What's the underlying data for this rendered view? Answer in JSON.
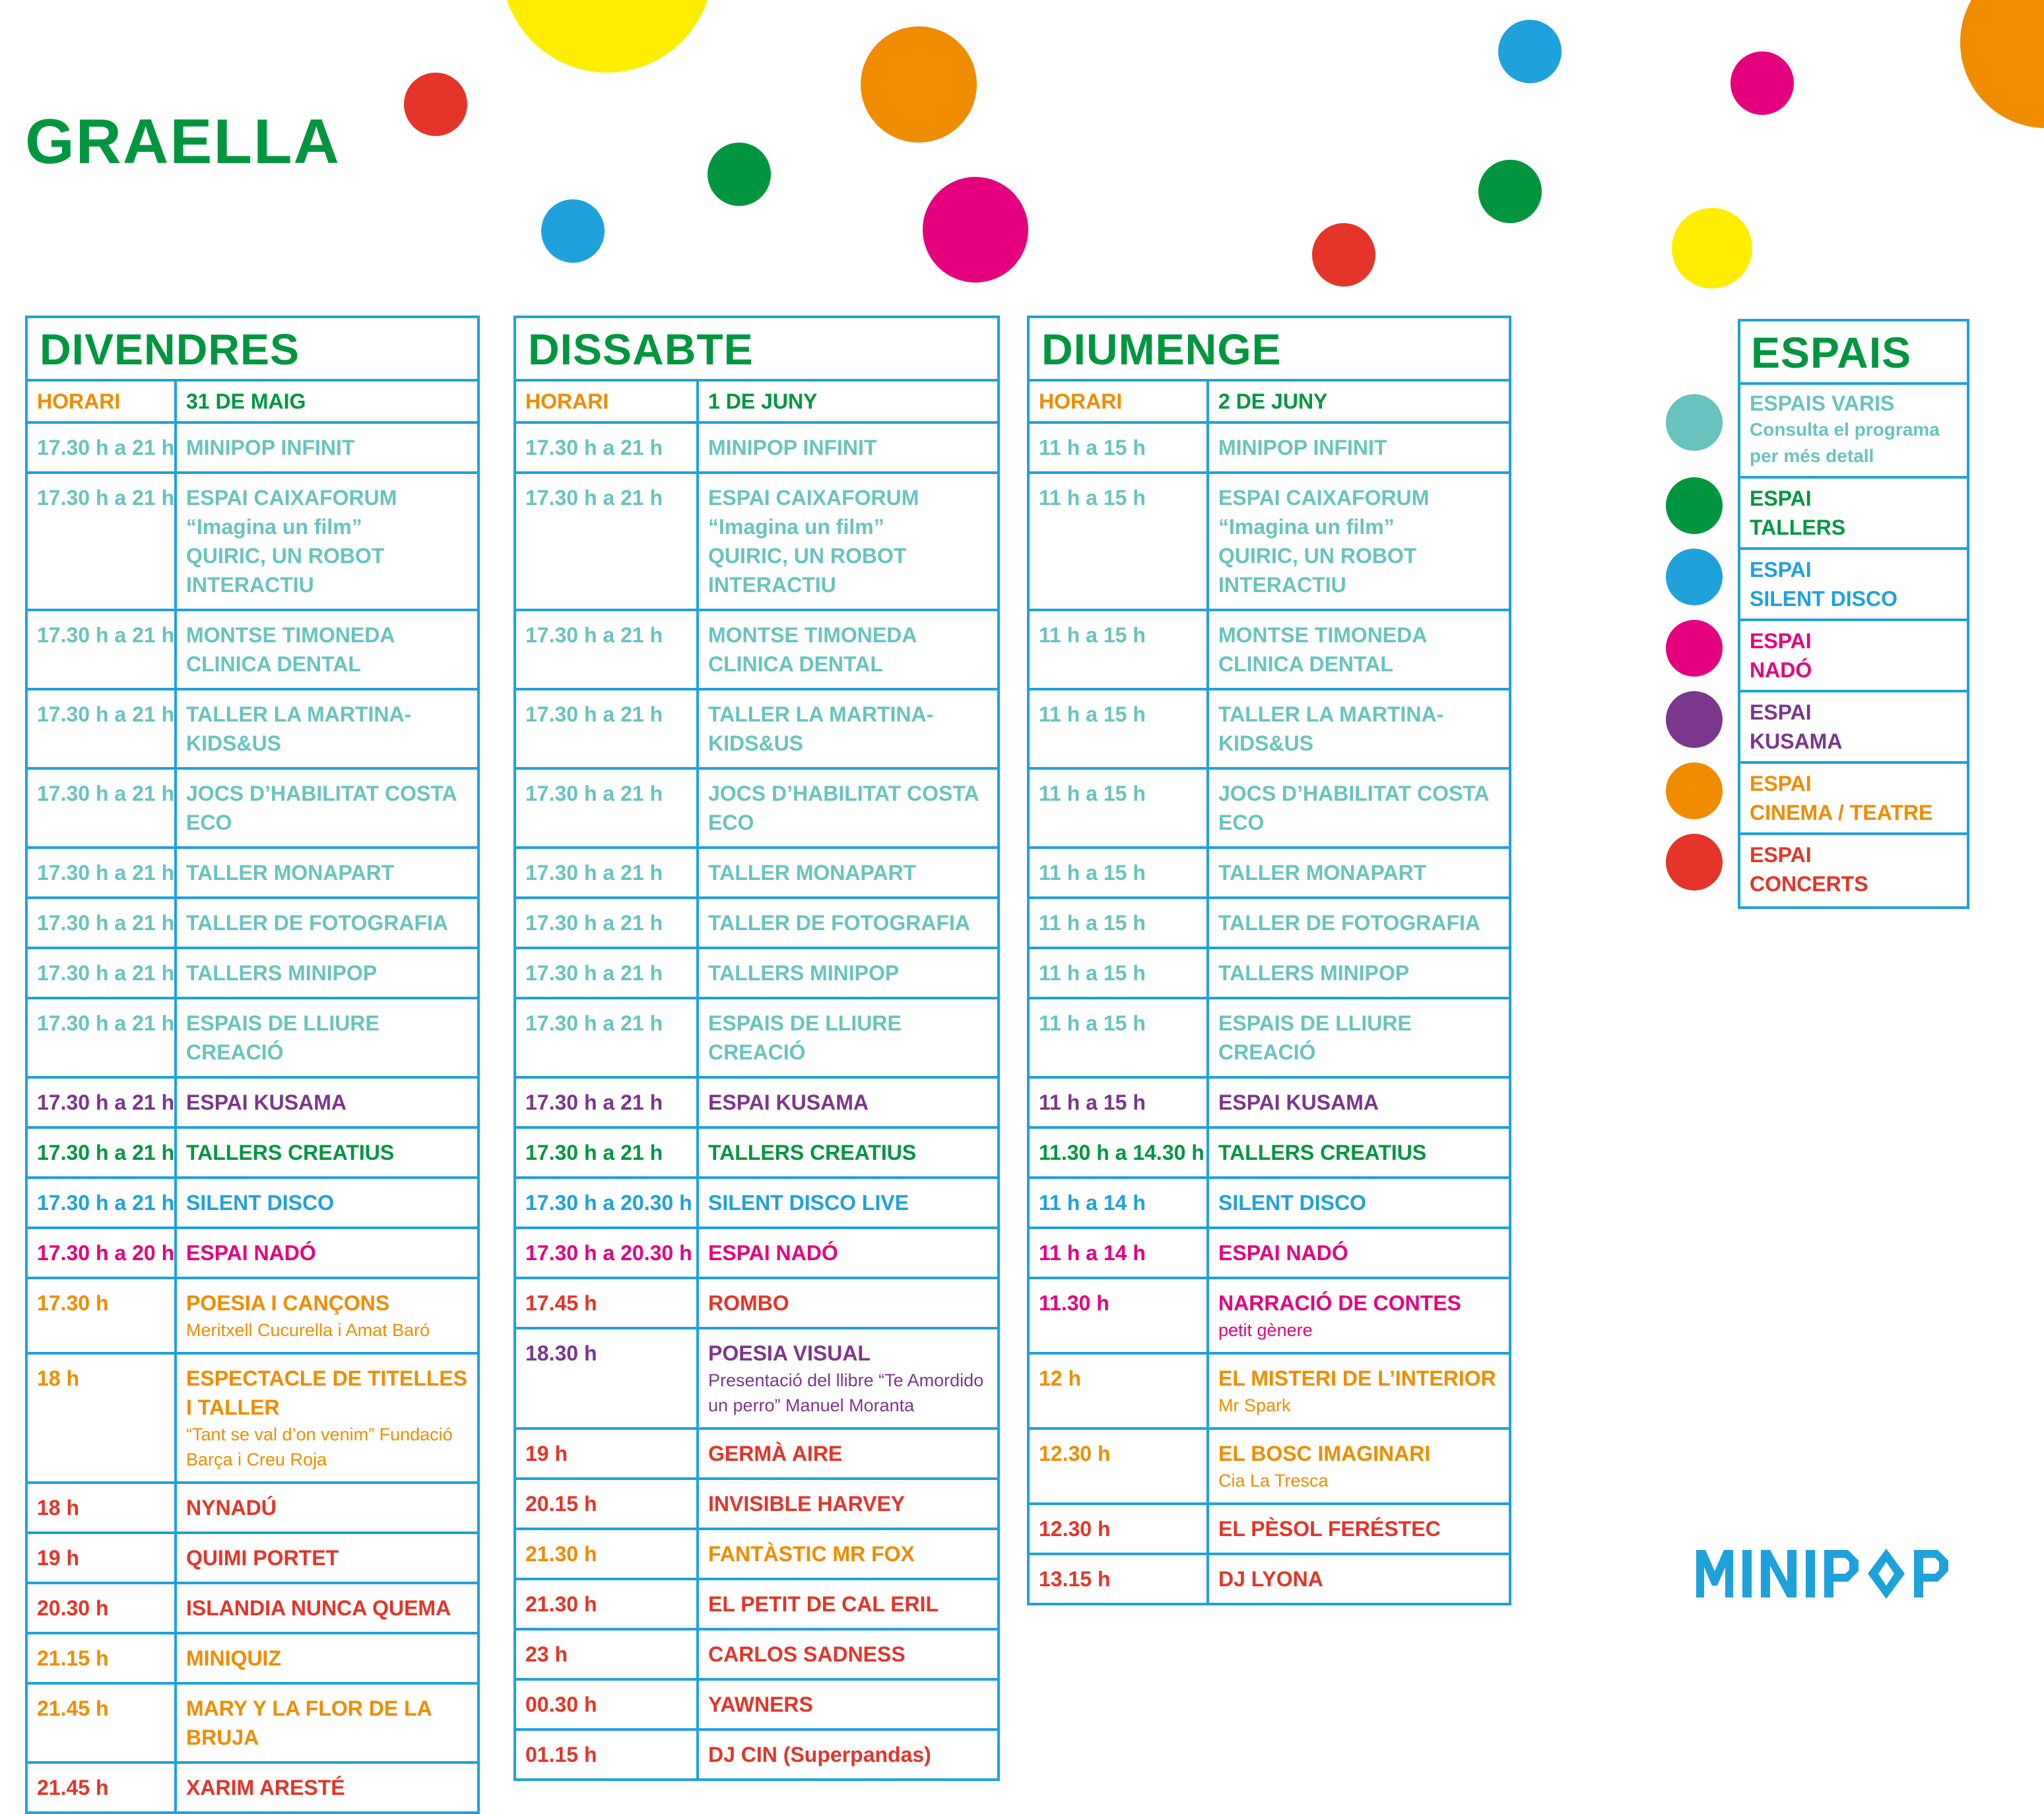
{
  "title": "GRAELLA",
  "colors": {
    "border": "#1fa1dc",
    "green": "#009640",
    "teal": "#69c3be",
    "blue": "#1fa1dc",
    "pink": "#e5007e",
    "purple": "#7b378b",
    "orange": "#f08c00",
    "red": "#e53429",
    "yellow": "#ffed00"
  },
  "days": [
    {
      "name": "DIVENDRES",
      "horari_label": "HORARI",
      "date": "31 DE MAIG",
      "rows": [
        {
          "time": "17.30 h a 21 h",
          "lines": [
            "MINIPOP INFINIT"
          ],
          "color": "teal"
        },
        {
          "time": "17.30 h a 21 h",
          "lines": [
            "ESPAI CAIXAFORUM",
            "“Imagina un film”",
            "QUIRIC, UN ROBOT INTERACTIU"
          ],
          "color": "teal"
        },
        {
          "time": "17.30 h a 21 h",
          "lines": [
            "MONTSE TIMONEDA",
            "CLINICA DENTAL"
          ],
          "color": "teal"
        },
        {
          "time": "17.30 h a 21 h",
          "lines": [
            "TALLER LA MARTINA- KIDS&US"
          ],
          "color": "teal"
        },
        {
          "time": "17.30 h a 21 h",
          "lines": [
            "JOCS D’HABILITAT COSTA ECO"
          ],
          "color": "teal"
        },
        {
          "time": "17.30 h a 21 h",
          "lines": [
            "TALLER MONAPART"
          ],
          "color": "teal"
        },
        {
          "time": "17.30 h a 21 h",
          "lines": [
            "TALLER DE FOTOGRAFIA"
          ],
          "color": "teal"
        },
        {
          "time": "17.30 h a 21 h",
          "lines": [
            "TALLERS MINIPOP"
          ],
          "color": "teal"
        },
        {
          "time": "17.30 h a 21 h",
          "lines": [
            "ESPAIS DE LLIURE CREACIÓ"
          ],
          "color": "teal"
        },
        {
          "time": "17.30 h a 21 h",
          "lines": [
            "ESPAI KUSAMA"
          ],
          "color": "purple"
        },
        {
          "time": "17.30 h a 21 h",
          "lines": [
            "TALLERS CREATIUS"
          ],
          "color": "green"
        },
        {
          "time": "17.30 h a 21 h",
          "lines": [
            "SILENT DISCO"
          ],
          "color": "blue"
        },
        {
          "time": "17.30 h a 20 h",
          "lines": [
            "ESPAI NADÓ"
          ],
          "color": "pink"
        },
        {
          "time": "17.30 h",
          "lines": [
            "POESIA I CANÇONS"
          ],
          "sub": [
            "Meritxell Cucurella i Amat Baró"
          ],
          "color": "orange"
        },
        {
          "time": "18 h",
          "lines": [
            "ESPECTACLE DE TITELLES I TALLER"
          ],
          "sub": [
            "“Tant se val d’on venim” Fundació",
            "Barça i Creu Roja"
          ],
          "color": "orange"
        },
        {
          "time": "18 h",
          "lines": [
            "NYNADÚ"
          ],
          "color": "red"
        },
        {
          "time": "19 h",
          "lines": [
            "QUIMI PORTET"
          ],
          "color": "red"
        },
        {
          "time": "20.30 h",
          "lines": [
            "ISLANDIA NUNCA QUEMA"
          ],
          "color": "red"
        },
        {
          "time": "21.15 h",
          "lines": [
            "MINIQUIZ"
          ],
          "color": "orange"
        },
        {
          "time": "21.45 h",
          "lines": [
            "MARY Y LA FLOR DE LA",
            "BRUJA"
          ],
          "color": "orange"
        },
        {
          "time": "21.45 h",
          "lines": [
            "XARIM ARESTÉ"
          ],
          "color": "red"
        }
      ]
    },
    {
      "name": "DISSABTE",
      "horari_label": "HORARI",
      "date": "1 DE JUNY",
      "rows": [
        {
          "time": "17.30 h a 21 h",
          "lines": [
            "MINIPOP INFINIT"
          ],
          "color": "teal"
        },
        {
          "time": "17.30 h a 21 h",
          "lines": [
            "ESPAI CAIXAFORUM",
            "“Imagina un film”",
            "QUIRIC, UN ROBOT INTERACTIU"
          ],
          "color": "teal"
        },
        {
          "time": "17.30 h a 21 h",
          "lines": [
            "MONTSE TIMONEDA",
            "CLINICA DENTAL"
          ],
          "color": "teal"
        },
        {
          "time": "17.30 h a 21 h",
          "lines": [
            "TALLER LA MARTINA- KIDS&US"
          ],
          "color": "teal"
        },
        {
          "time": "17.30 h a 21 h",
          "lines": [
            "JOCS D’HABILITAT COSTA ECO"
          ],
          "color": "teal"
        },
        {
          "time": "17.30 h a 21 h",
          "lines": [
            "TALLER MONAPART"
          ],
          "color": "teal"
        },
        {
          "time": "17.30 h a 21 h",
          "lines": [
            "TALLER DE FOTOGRAFIA"
          ],
          "color": "teal"
        },
        {
          "time": "17.30 h a 21 h",
          "lines": [
            "TALLERS MINIPOP"
          ],
          "color": "teal"
        },
        {
          "time": "17.30 h a 21 h",
          "lines": [
            "ESPAIS DE LLIURE CREACIÓ"
          ],
          "color": "teal"
        },
        {
          "time": "17.30 h a 21 h",
          "lines": [
            "ESPAI KUSAMA"
          ],
          "color": "purple"
        },
        {
          "time": "17.30 h a 21 h",
          "lines": [
            "TALLERS CREATIUS"
          ],
          "color": "green"
        },
        {
          "time": "17.30 h a 20.30 h",
          "lines": [
            "SILENT DISCO LIVE"
          ],
          "color": "blue"
        },
        {
          "time": "17.30 h a 20.30 h",
          "lines": [
            "ESPAI NADÓ"
          ],
          "color": "pink"
        },
        {
          "time": "17.45 h",
          "lines": [
            "ROMBO"
          ],
          "color": "red"
        },
        {
          "time": "18.30 h",
          "lines": [
            "POESIA VISUAL"
          ],
          "sub": [
            "Presentació del llibre “Te Amordido",
            "un perro”  Manuel Moranta"
          ],
          "color": "purple"
        },
        {
          "time": "19 h",
          "lines": [
            "GERMÀ AIRE"
          ],
          "color": "red"
        },
        {
          "time": "20.15 h",
          "lines": [
            "INVISIBLE HARVEY"
          ],
          "color": "red"
        },
        {
          "time": "21.30 h",
          "lines": [
            "FANTÀSTIC MR FOX"
          ],
          "color": "orange"
        },
        {
          "time": "21.30 h",
          "lines": [
            "EL PETIT DE CAL ERIL"
          ],
          "color": "red"
        },
        {
          "time": "23 h",
          "lines": [
            "CARLOS SADNESS"
          ],
          "color": "red"
        },
        {
          "time": "00.30 h",
          "lines": [
            "YAWNERS"
          ],
          "color": "red"
        },
        {
          "time": "01.15 h",
          "lines": [
            "DJ CIN (Superpandas)"
          ],
          "color": "red"
        }
      ]
    },
    {
      "name": "DIUMENGE",
      "horari_label": "HORARI",
      "date": "2 DE JUNY",
      "rows": [
        {
          "time": "11 h a 15 h",
          "lines": [
            "MINIPOP INFINIT"
          ],
          "color": "teal"
        },
        {
          "time": "11 h a 15 h",
          "lines": [
            "ESPAI CAIXAFORUM",
            "“Imagina un film”",
            "QUIRIC, UN ROBOT INTERACTIU"
          ],
          "color": "teal"
        },
        {
          "time": "11 h a 15 h",
          "lines": [
            "MONTSE TIMONEDA",
            "CLINICA DENTAL"
          ],
          "color": "teal"
        },
        {
          "time": "11 h a 15 h",
          "lines": [
            "TALLER LA MARTINA- KIDS&US"
          ],
          "color": "teal"
        },
        {
          "time": "11 h a 15 h",
          "lines": [
            "JOCS D’HABILITAT COSTA ECO"
          ],
          "color": "teal"
        },
        {
          "time": "11 h a 15 h",
          "lines": [
            "TALLER MONAPART"
          ],
          "color": "teal"
        },
        {
          "time": "11 h a 15 h",
          "lines": [
            "TALLER DE FOTOGRAFIA"
          ],
          "color": "teal"
        },
        {
          "time": "11 h a 15 h",
          "lines": [
            "TALLERS MINIPOP"
          ],
          "color": "teal"
        },
        {
          "time": "11 h a 15 h",
          "lines": [
            "ESPAIS DE LLIURE CREACIÓ"
          ],
          "color": "teal"
        },
        {
          "time": "11 h a 15 h",
          "lines": [
            "ESPAI KUSAMA"
          ],
          "color": "purple"
        },
        {
          "time": "11.30 h a 14.30 h",
          "lines": [
            "TALLERS CREATIUS"
          ],
          "color": "green"
        },
        {
          "time": "11 h a 14 h",
          "lines": [
            "SILENT DISCO"
          ],
          "color": "blue"
        },
        {
          "time": "11 h a 14 h",
          "lines": [
            "ESPAI NADÓ"
          ],
          "color": "pink"
        },
        {
          "time": "11.30 h",
          "lines": [
            "NARRACIÓ DE CONTES"
          ],
          "sub": [
            "petit gènere"
          ],
          "color": "pink"
        },
        {
          "time": "12 h",
          "lines": [
            "EL MISTERI DE L’INTERIOR"
          ],
          "sub": [
            "Mr Spark"
          ],
          "color": "orange"
        },
        {
          "time": "12.30 h",
          "lines": [
            "EL BOSC IMAGINARI"
          ],
          "sub": [
            "Cia La Tresca"
          ],
          "color": "orange"
        },
        {
          "time": "12.30 h",
          "lines": [
            "EL PÈSOL FERÉSTEC"
          ],
          "color": "red"
        },
        {
          "time": "13.15 h",
          "lines": [
            "DJ LYONA"
          ],
          "color": "red"
        }
      ]
    }
  ],
  "espais": {
    "title": "ESPAIS",
    "items": [
      {
        "lines": [
          "ESPAIS VARIS"
        ],
        "note": [
          "Consulta el  programa",
          "per més detall"
        ],
        "color": "teal"
      },
      {
        "lines": [
          "ESPAI",
          "TALLERS"
        ],
        "color": "green"
      },
      {
        "lines": [
          "ESPAI",
          "SILENT DISCO"
        ],
        "color": "blue"
      },
      {
        "lines": [
          "ESPAI",
          "NADÓ"
        ],
        "color": "pink"
      },
      {
        "lines": [
          "ESPAI",
          "KUSAMA"
        ],
        "color": "purple"
      },
      {
        "lines": [
          "ESPAI",
          "CINEMA / TEATRE"
        ],
        "color": "orange"
      },
      {
        "lines": [
          "ESPAI",
          "CONCERTS"
        ],
        "color": "red"
      }
    ]
  },
  "logo": "MINIPOP",
  "decorative_dots": [
    "yellow",
    "red",
    "green",
    "blue",
    "orange",
    "pink",
    "blue",
    "green",
    "red",
    "pink",
    "yellow",
    "orange"
  ]
}
